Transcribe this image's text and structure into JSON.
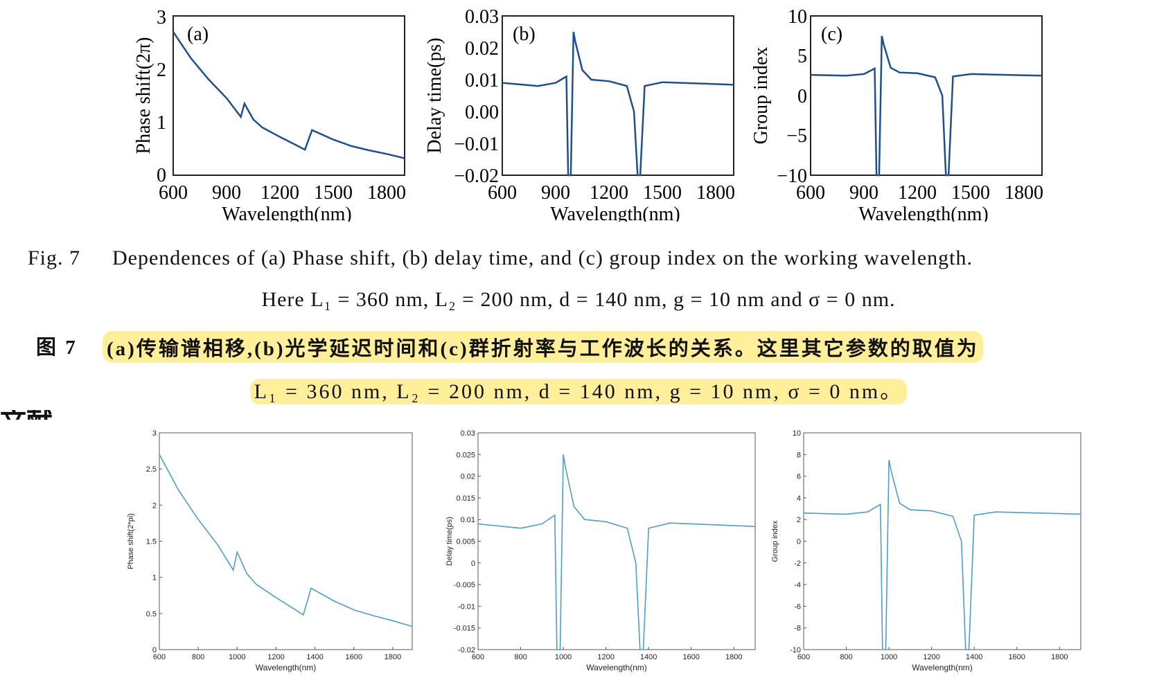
{
  "top_figure": {
    "panels": [
      {
        "label": "(a)",
        "ylabel": "Phase shift(2π)",
        "xlabel": "Wavelength(nm)",
        "xticks": [
          "600",
          "900",
          "1200",
          "1500",
          "1800"
        ],
        "yticks": [
          "0",
          "1",
          "2",
          "3"
        ]
      },
      {
        "label": "(b)",
        "ylabel": "Delay time(ps)",
        "xlabel": "Wavelength(nm)",
        "xticks": [
          "600",
          "900",
          "1200",
          "1500",
          "1800"
        ],
        "yticks": [
          "−0.02",
          "−0.01",
          "0.00",
          "0.01",
          "0.02",
          "0.03"
        ]
      },
      {
        "label": "(c)",
        "ylabel": "Group index",
        "xlabel": "Wavelength(nm)",
        "xticks": [
          "600",
          "900",
          "1200",
          "1500",
          "1800"
        ],
        "yticks": [
          "−10",
          "−5",
          "0",
          "5",
          "10"
        ]
      }
    ]
  },
  "caption": {
    "en_fig": "Fig. 7",
    "en_line1": "Dependences of (a) Phase shift, (b) delay time, and (c) group index on the working wavelength.",
    "en_line2": "Here L₁ = 360 nm, L₂ = 200 nm, d = 140 nm, g = 10 nm and σ = 0 nm.",
    "cn_fig": "图 7",
    "cn_line1": "(a)传输谱相移,(b)光学延迟时间和(c)群折射率与工作波长的关系。这里其它参数的取值为",
    "cn_line2": "L₁ = 360 nm, L₂ = 200 nm, d = 140 nm, g = 10 nm, σ = 0 nm。"
  },
  "cut_heading": "文献",
  "bottom_figure": {
    "line_color": "#4d9ec4",
    "panels": [
      {
        "ylabel": "Phase shift(2*pi)",
        "xlabel": "Wavelength(nm)",
        "xticks": [
          "600",
          "800",
          "1000",
          "1200",
          "1400",
          "1600",
          "1800"
        ],
        "yticks": [
          "0",
          "0.5",
          "1",
          "1.5",
          "2",
          "2.5",
          "3"
        ]
      },
      {
        "ylabel": "Delay time(ps)",
        "xlabel": "Wavelength(nm)",
        "xticks": [
          "600",
          "800",
          "1000",
          "1200",
          "1400",
          "1600",
          "1800"
        ],
        "yticks": [
          "-0.02",
          "-0.015",
          "-0.01",
          "-0.005",
          "0",
          "0.005",
          "0.01",
          "0.015",
          "0.02",
          "0.025",
          "0.03"
        ]
      },
      {
        "ylabel": "Group index",
        "xlabel": "Wavelength(nm)",
        "xticks": [
          "600",
          "800",
          "1000",
          "1200",
          "1400",
          "1600",
          "1800"
        ],
        "yticks": [
          "-10",
          "-8",
          "-6",
          "-4",
          "-2",
          "0",
          "2",
          "4",
          "6",
          "8",
          "10"
        ]
      }
    ]
  },
  "chart_data": [
    {
      "type": "line",
      "title": "(a) Phase shift",
      "xlabel": "Wavelength(nm)",
      "ylabel": "Phase shift(2π)",
      "xlim": [
        600,
        1900
      ],
      "ylim": [
        0,
        3
      ],
      "x": [
        600,
        700,
        800,
        900,
        980,
        1000,
        1050,
        1100,
        1200,
        1300,
        1340,
        1380,
        1500,
        1600,
        1700,
        1800,
        1900
      ],
      "y": [
        2.7,
        2.2,
        1.8,
        1.45,
        1.1,
        1.35,
        1.05,
        0.9,
        0.72,
        0.55,
        0.48,
        0.85,
        0.67,
        0.55,
        0.47,
        0.4,
        0.32
      ]
    },
    {
      "type": "line",
      "title": "(b) Delay time",
      "xlabel": "Wavelength(nm)",
      "ylabel": "Delay time(ps)",
      "xlim": [
        600,
        1900
      ],
      "ylim": [
        -0.02,
        0.03
      ],
      "x": [
        600,
        800,
        900,
        960,
        970,
        985,
        1000,
        1010,
        1050,
        1100,
        1200,
        1300,
        1340,
        1360,
        1375,
        1400,
        1500,
        1700,
        1900
      ],
      "y": [
        0.009,
        0.008,
        0.009,
        0.011,
        -0.02,
        -0.02,
        0.025,
        0.022,
        0.013,
        0.01,
        0.0095,
        0.008,
        0.0,
        -0.02,
        -0.02,
        0.008,
        0.0092,
        0.0088,
        0.0084
      ]
    },
    {
      "type": "line",
      "title": "(c) Group index",
      "xlabel": "Wavelength(nm)",
      "ylabel": "Group index",
      "xlim": [
        600,
        1900
      ],
      "ylim": [
        -10,
        10
      ],
      "x": [
        600,
        800,
        900,
        960,
        970,
        985,
        1000,
        1010,
        1050,
        1100,
        1200,
        1300,
        1340,
        1360,
        1375,
        1400,
        1500,
        1700,
        1900
      ],
      "y": [
        2.6,
        2.5,
        2.7,
        3.4,
        -10,
        -10,
        7.5,
        6.5,
        3.5,
        2.9,
        2.8,
        2.3,
        0,
        -10,
        -10,
        2.4,
        2.7,
        2.6,
        2.5
      ]
    }
  ]
}
